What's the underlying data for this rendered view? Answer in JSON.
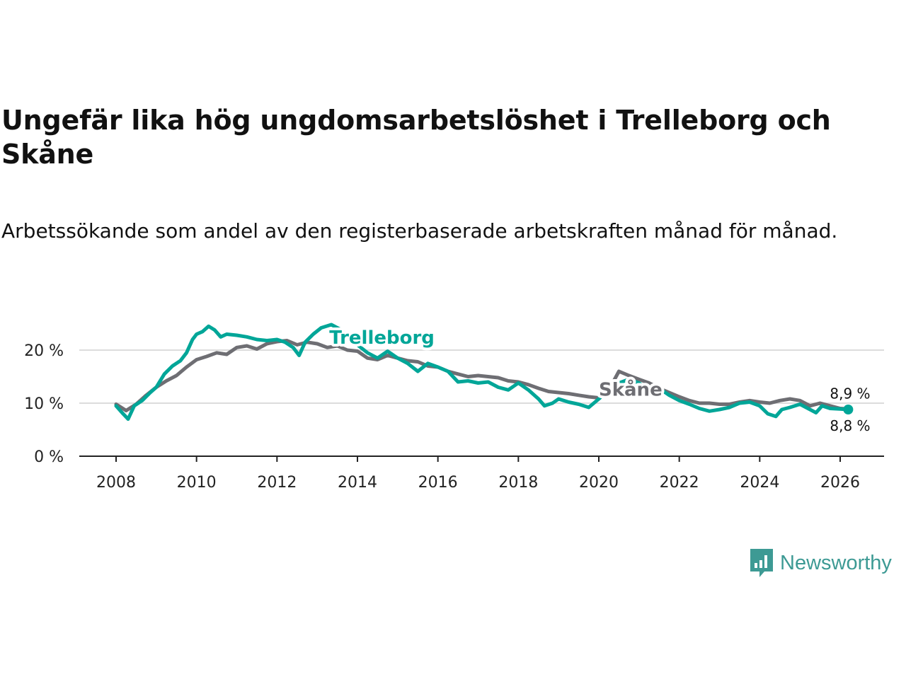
{
  "title": "Ungefär lika hög ungdomsarbetslöshet i Trelleborg och Skåne",
  "subtitle": "Arbetssökande som andel av den registerbaserade arbetskraften månad för månad.",
  "brand": {
    "name": "Newsworthy",
    "color": "#3d9a94",
    "icon": "chat-bubble-bar-chart-icon"
  },
  "chart_data": {
    "type": "line",
    "title": "Ungefär lika hög ungdomsarbetslöshet i Trelleborg och Skåne",
    "xlabel": "",
    "ylabel": "",
    "xlim": [
      2008,
      2026.3
    ],
    "ylim": [
      0,
      25
    ],
    "yticks": [
      0,
      10,
      20
    ],
    "ytick_labels": [
      "0 %",
      "10 %",
      "20 %"
    ],
    "xticks": [
      2008,
      2010,
      2012,
      2014,
      2016,
      2018,
      2020,
      2022,
      2024,
      2026
    ],
    "xtick_labels": [
      "2008",
      "2010",
      "2012",
      "2014",
      "2016",
      "2018",
      "2020",
      "2022",
      "2024",
      "2026"
    ],
    "grid": "horizontal",
    "series": [
      {
        "name": "Skåne",
        "color": "#6e6e73",
        "end_label": "8,9 %",
        "points": [
          [
            2008.0,
            9.8
          ],
          [
            2008.25,
            8.6
          ],
          [
            2008.5,
            9.8
          ],
          [
            2008.75,
            11.5
          ],
          [
            2009.0,
            13.0
          ],
          [
            2009.25,
            14.2
          ],
          [
            2009.5,
            15.2
          ],
          [
            2009.75,
            16.8
          ],
          [
            2010.0,
            18.2
          ],
          [
            2010.25,
            18.8
          ],
          [
            2010.5,
            19.5
          ],
          [
            2010.75,
            19.2
          ],
          [
            2011.0,
            20.5
          ],
          [
            2011.25,
            20.8
          ],
          [
            2011.5,
            20.2
          ],
          [
            2011.75,
            21.2
          ],
          [
            2012.0,
            21.6
          ],
          [
            2012.25,
            21.8
          ],
          [
            2012.5,
            21.0
          ],
          [
            2012.75,
            21.5
          ],
          [
            2013.0,
            21.2
          ],
          [
            2013.25,
            20.5
          ],
          [
            2013.5,
            20.8
          ],
          [
            2013.75,
            20.0
          ],
          [
            2014.0,
            19.8
          ],
          [
            2014.25,
            18.5
          ],
          [
            2014.5,
            18.2
          ],
          [
            2014.75,
            19.0
          ],
          [
            2015.0,
            18.5
          ],
          [
            2015.25,
            18.0
          ],
          [
            2015.5,
            17.8
          ],
          [
            2015.75,
            17.0
          ],
          [
            2016.0,
            16.8
          ],
          [
            2016.25,
            16.0
          ],
          [
            2016.5,
            15.5
          ],
          [
            2016.75,
            15.0
          ],
          [
            2017.0,
            15.2
          ],
          [
            2017.25,
            15.0
          ],
          [
            2017.5,
            14.8
          ],
          [
            2017.75,
            14.2
          ],
          [
            2018.0,
            14.0
          ],
          [
            2018.25,
            13.5
          ],
          [
            2018.5,
            12.8
          ],
          [
            2018.75,
            12.2
          ],
          [
            2019.0,
            12.0
          ],
          [
            2019.25,
            11.8
          ],
          [
            2019.5,
            11.5
          ],
          [
            2019.75,
            11.2
          ],
          [
            2020.0,
            11.0
          ],
          [
            2020.25,
            12.5
          ],
          [
            2020.5,
            16.0
          ],
          [
            2020.75,
            15.2
          ],
          [
            2021.0,
            14.5
          ],
          [
            2021.25,
            13.8
          ],
          [
            2021.5,
            12.8
          ],
          [
            2021.75,
            12.0
          ],
          [
            2022.0,
            11.2
          ],
          [
            2022.25,
            10.5
          ],
          [
            2022.5,
            10.0
          ],
          [
            2022.75,
            10.0
          ],
          [
            2023.0,
            9.8
          ],
          [
            2023.25,
            9.8
          ],
          [
            2023.5,
            10.2
          ],
          [
            2023.75,
            10.5
          ],
          [
            2024.0,
            10.2
          ],
          [
            2024.25,
            10.0
          ],
          [
            2024.5,
            10.5
          ],
          [
            2024.75,
            10.8
          ],
          [
            2025.0,
            10.5
          ],
          [
            2025.25,
            9.5
          ],
          [
            2025.5,
            10.0
          ],
          [
            2025.75,
            9.5
          ],
          [
            2026.0,
            9.0
          ],
          [
            2026.2,
            8.9
          ]
        ]
      },
      {
        "name": "Trelleborg",
        "color": "#00a698",
        "end_label": "8,8 %",
        "points": [
          [
            2008.0,
            9.5
          ],
          [
            2008.15,
            8.2
          ],
          [
            2008.3,
            7.0
          ],
          [
            2008.45,
            9.5
          ],
          [
            2008.65,
            10.5
          ],
          [
            2008.85,
            12.0
          ],
          [
            2009.0,
            13.0
          ],
          [
            2009.2,
            15.5
          ],
          [
            2009.4,
            17.0
          ],
          [
            2009.6,
            18.0
          ],
          [
            2009.75,
            19.5
          ],
          [
            2009.9,
            22.0
          ],
          [
            2010.0,
            23.0
          ],
          [
            2010.15,
            23.5
          ],
          [
            2010.3,
            24.5
          ],
          [
            2010.45,
            23.8
          ],
          [
            2010.6,
            22.5
          ],
          [
            2010.75,
            23.0
          ],
          [
            2011.0,
            22.8
          ],
          [
            2011.25,
            22.5
          ],
          [
            2011.5,
            22.0
          ],
          [
            2011.75,
            21.8
          ],
          [
            2012.0,
            22.0
          ],
          [
            2012.2,
            21.5
          ],
          [
            2012.4,
            20.5
          ],
          [
            2012.55,
            19.0
          ],
          [
            2012.7,
            21.5
          ],
          [
            2012.9,
            23.0
          ],
          [
            2013.1,
            24.2
          ],
          [
            2013.35,
            24.8
          ],
          [
            2013.55,
            24.0
          ],
          [
            2013.8,
            22.5
          ],
          [
            2014.0,
            21.0
          ],
          [
            2014.25,
            19.5
          ],
          [
            2014.5,
            18.5
          ],
          [
            2014.75,
            19.8
          ],
          [
            2015.0,
            18.5
          ],
          [
            2015.25,
            17.5
          ],
          [
            2015.5,
            16.0
          ],
          [
            2015.75,
            17.5
          ],
          [
            2016.0,
            16.8
          ],
          [
            2016.25,
            16.0
          ],
          [
            2016.5,
            14.0
          ],
          [
            2016.75,
            14.2
          ],
          [
            2017.0,
            13.8
          ],
          [
            2017.25,
            14.0
          ],
          [
            2017.5,
            13.0
          ],
          [
            2017.75,
            12.5
          ],
          [
            2018.0,
            13.8
          ],
          [
            2018.25,
            12.5
          ],
          [
            2018.5,
            10.8
          ],
          [
            2018.65,
            9.5
          ],
          [
            2018.85,
            10.0
          ],
          [
            2019.0,
            10.8
          ],
          [
            2019.25,
            10.2
          ],
          [
            2019.5,
            9.8
          ],
          [
            2019.75,
            9.2
          ],
          [
            2020.0,
            10.8
          ],
          [
            2020.25,
            12.5
          ],
          [
            2020.5,
            13.8
          ],
          [
            2020.75,
            14.5
          ],
          [
            2021.0,
            13.8
          ],
          [
            2021.25,
            12.5
          ],
          [
            2021.5,
            12.8
          ],
          [
            2021.75,
            11.5
          ],
          [
            2022.0,
            10.5
          ],
          [
            2022.25,
            9.8
          ],
          [
            2022.5,
            9.0
          ],
          [
            2022.75,
            8.5
          ],
          [
            2023.0,
            8.8
          ],
          [
            2023.25,
            9.2
          ],
          [
            2023.5,
            10.0
          ],
          [
            2023.75,
            10.2
          ],
          [
            2024.0,
            9.5
          ],
          [
            2024.2,
            8.0
          ],
          [
            2024.4,
            7.5
          ],
          [
            2024.55,
            8.8
          ],
          [
            2024.75,
            9.2
          ],
          [
            2025.0,
            9.8
          ],
          [
            2025.25,
            8.8
          ],
          [
            2025.4,
            8.2
          ],
          [
            2025.55,
            9.5
          ],
          [
            2025.75,
            9.0
          ],
          [
            2026.0,
            8.9
          ],
          [
            2026.2,
            8.8
          ]
        ]
      }
    ],
    "annotations": [
      {
        "text": "Trelleborg",
        "series": "Trelleborg",
        "at": [
          2013.3,
          21.2
        ]
      },
      {
        "text": "Skåne",
        "series": "Skåne",
        "at": [
          2020.0,
          11.4
        ]
      }
    ]
  }
}
